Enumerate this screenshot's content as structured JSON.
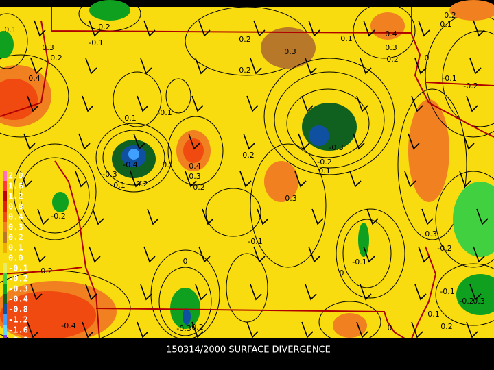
{
  "title": "150314/2000 SURFACE DIVERGENCE",
  "legend": [
    {
      "label": "2.0",
      "color": "#ff70c0"
    },
    {
      "label": "1.6",
      "color": "#ff3a3a"
    },
    {
      "label": "1.2",
      "color": "#c00000"
    },
    {
      "label": "0.8",
      "color": "#e02000"
    },
    {
      "label": "0.4",
      "color": "#f04a10"
    },
    {
      "label": "0.3",
      "color": "#f08020"
    },
    {
      "label": "0.2",
      "color": "#b8782a"
    },
    {
      "label": "0.1",
      "color": "#f0b000"
    },
    {
      "label": "0.0",
      "color": "#f8dc10"
    },
    {
      "label": "-0.1",
      "color": "#e8ec60"
    },
    {
      "label": "-0.2",
      "color": "#40d040"
    },
    {
      "label": "-0.3",
      "color": "#10a020"
    },
    {
      "label": "-0.4",
      "color": "#106020"
    },
    {
      "label": "-0.8",
      "color": "#1050a0"
    },
    {
      "label": "-1.2",
      "color": "#40a0ff"
    },
    {
      "label": "-1.6",
      "color": "#60d8ff"
    },
    {
      "label": "-2.0",
      "color": "#8040e0"
    }
  ],
  "contour_labels": [
    "0.1",
    "-0.1",
    "0.2",
    "0.3",
    "0.2",
    "0.4",
    "0.2",
    "0.3",
    "0.1",
    "0.4",
    "0.3",
    "0.2",
    "0.2",
    "0.1",
    "0",
    "-0.1",
    "-0.2",
    "0.2",
    "0.1",
    "-0.1",
    "-0.3",
    "0.2",
    "-0.2",
    "0.1",
    "-0.4",
    "0.1",
    "0.4",
    "0.3",
    "0.2",
    "-0.3",
    "-0.1",
    "-0.2",
    "0.3",
    "-0.2",
    "0.3",
    "-0.2",
    "-0.1",
    "-0.1",
    "0",
    "0.2",
    "0",
    "-0.1",
    "-0.2",
    "0.3",
    "0.1",
    "0.2",
    "-0.4",
    "-0.3",
    "0.2",
    "0"
  ]
}
